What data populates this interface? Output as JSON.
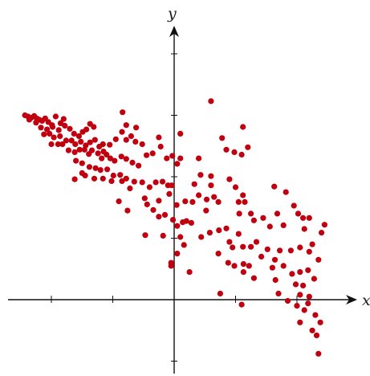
{
  "chart_data": {
    "type": "scatter",
    "title": "",
    "xlabel": "x",
    "ylabel": "y",
    "xlim": [
      -2.7,
      2.95
    ],
    "ylim": [
      -1.25,
      4.2
    ],
    "xticks": [
      -2,
      -1,
      1,
      2
    ],
    "yticks": [
      -1,
      1,
      2,
      3,
      4
    ],
    "grid": false,
    "legend": "none",
    "point_color": "#c0000f",
    "series": [
      {
        "points": [
          [
            -2.43,
            3.0
          ],
          [
            -2.38,
            2.98
          ],
          [
            -2.33,
            2.96
          ],
          [
            -2.28,
            2.99
          ],
          [
            -2.24,
            2.95
          ],
          [
            -2.2,
            2.93
          ],
          [
            -2.15,
            2.91
          ],
          [
            -2.1,
            2.95
          ],
          [
            -2.05,
            2.89
          ],
          [
            -1.99,
            2.84
          ],
          [
            -1.93,
            2.98
          ],
          [
            -1.85,
            2.87
          ],
          [
            -1.8,
            2.94
          ],
          [
            -2.36,
            2.93
          ],
          [
            -2.25,
            2.88
          ],
          [
            -2.17,
            2.8
          ],
          [
            -2.07,
            2.77
          ],
          [
            -1.98,
            2.81
          ],
          [
            -1.88,
            2.76
          ],
          [
            -1.78,
            2.83
          ],
          [
            -1.7,
            2.78
          ],
          [
            -1.63,
            2.7
          ],
          [
            -1.55,
            2.66
          ],
          [
            -1.49,
            2.73
          ],
          [
            -1.43,
            2.77
          ],
          [
            -1.37,
            2.86
          ],
          [
            -1.31,
            2.81
          ],
          [
            -2.12,
            2.69
          ],
          [
            -2.03,
            2.7
          ],
          [
            -1.96,
            2.64
          ],
          [
            -1.86,
            2.66
          ],
          [
            -1.76,
            2.59
          ],
          [
            -1.67,
            2.59
          ],
          [
            -1.61,
            2.53
          ],
          [
            -1.52,
            2.57
          ],
          [
            -1.44,
            2.51
          ],
          [
            -1.37,
            2.56
          ],
          [
            -1.29,
            2.6
          ],
          [
            -1.22,
            2.49
          ],
          [
            -1.16,
            2.53
          ],
          [
            -2.0,
            2.53
          ],
          [
            -1.89,
            2.53
          ],
          [
            -1.82,
            2.53
          ],
          [
            -1.72,
            2.43
          ],
          [
            -1.62,
            2.4
          ],
          [
            -1.54,
            2.44
          ],
          [
            -1.46,
            2.44
          ],
          [
            -1.39,
            2.37
          ],
          [
            -1.34,
            2.43
          ],
          [
            -1.24,
            2.38
          ],
          [
            -1.18,
            2.3
          ],
          [
            -1.1,
            2.36
          ],
          [
            -1.04,
            2.3
          ],
          [
            -0.97,
            2.26
          ],
          [
            -0.86,
            2.33
          ],
          [
            -0.78,
            2.29
          ],
          [
            -0.68,
            2.23
          ],
          [
            -0.58,
            2.18
          ],
          [
            -1.6,
            2.26
          ],
          [
            -1.5,
            2.22
          ],
          [
            -1.38,
            2.16
          ],
          [
            -1.28,
            2.14
          ],
          [
            -1.2,
            2.11
          ],
          [
            -1.09,
            2.12
          ],
          [
            -0.99,
            2.02
          ],
          [
            -0.88,
            2.03
          ],
          [
            -0.78,
            1.97
          ],
          [
            -0.65,
            1.92
          ],
          [
            -0.52,
            1.91
          ],
          [
            -0.4,
            1.83
          ],
          [
            -0.3,
            1.91
          ],
          [
            -0.19,
            1.92
          ],
          [
            -0.1,
            1.86
          ],
          [
            -0.04,
            1.86
          ],
          [
            -1.45,
            2.02
          ],
          [
            -1.3,
            1.97
          ],
          [
            -1.16,
            1.97
          ],
          [
            -1.02,
            1.93
          ],
          [
            -0.85,
            1.93
          ],
          [
            -0.72,
            1.81
          ],
          [
            -1.62,
            1.96
          ],
          [
            -1.5,
            2.06
          ],
          [
            -1.15,
            2.41
          ],
          [
            -1.05,
            2.52
          ],
          [
            -0.95,
            2.61
          ],
          [
            -0.85,
            2.73
          ],
          [
            -0.78,
            2.6
          ],
          [
            -0.7,
            2.66
          ],
          [
            -0.63,
            2.57
          ],
          [
            -0.52,
            2.53
          ],
          [
            -0.45,
            2.35
          ],
          [
            -0.35,
            2.38
          ],
          [
            -0.22,
            2.49
          ],
          [
            -0.12,
            2.3
          ],
          [
            -0.03,
            2.34
          ],
          [
            0.05,
            2.21
          ],
          [
            0.1,
            2.3
          ],
          [
            -0.84,
            3.05
          ],
          [
            -0.78,
            2.84
          ],
          [
            -0.62,
            2.8
          ],
          [
            -0.25,
            2.64
          ],
          [
            0.1,
            2.7
          ],
          [
            0.4,
            2.3
          ],
          [
            0.6,
            3.23
          ],
          [
            0.78,
            2.63
          ],
          [
            0.85,
            2.44
          ],
          [
            0.98,
            2.4
          ],
          [
            1.1,
            2.36
          ],
          [
            1.12,
            2.81
          ],
          [
            1.2,
            2.48
          ],
          [
            0.6,
            2.01
          ],
          [
            0.43,
            2.03
          ],
          [
            0.33,
            1.88
          ],
          [
            0.4,
            1.7
          ],
          [
            0.6,
            1.86
          ],
          [
            0.65,
            1.67
          ],
          [
            0.53,
            1.63
          ],
          [
            0.72,
            1.59
          ],
          [
            0.9,
            1.96
          ],
          [
            1.0,
            1.83
          ],
          [
            1.05,
            1.59
          ],
          [
            1.15,
            1.59
          ],
          [
            1.06,
            1.4
          ],
          [
            1.25,
            1.4
          ],
          [
            1.12,
            1.7
          ],
          [
            1.3,
            1.29
          ],
          [
            1.45,
            1.33
          ],
          [
            1.56,
            1.19
          ],
          [
            1.68,
            1.4
          ],
          [
            1.78,
            1.21
          ],
          [
            1.82,
            1.75
          ],
          [
            1.95,
            1.53
          ],
          [
            2.02,
            1.4
          ],
          [
            2.1,
            1.33
          ],
          [
            2.12,
            1.15
          ],
          [
            2.2,
            1.33
          ],
          [
            1.63,
            1.84
          ],
          [
            -0.9,
            1.6
          ],
          [
            -0.76,
            1.45
          ],
          [
            -0.44,
            1.55
          ],
          [
            -0.34,
            1.46
          ],
          [
            -0.25,
            1.35
          ],
          [
            -0.15,
            1.38
          ],
          [
            -0.02,
            1.3
          ],
          [
            0.05,
            1.2
          ],
          [
            0.14,
            1.26
          ],
          [
            0.2,
            1.28
          ],
          [
            0.28,
            1.25
          ],
          [
            0.44,
            1.02
          ],
          [
            0.1,
            1.02
          ],
          [
            0.16,
            0.89
          ],
          [
            -0.18,
            1.04
          ],
          [
            -0.47,
            1.05
          ],
          [
            -0.48,
            1.65
          ],
          [
            -0.25,
            1.61
          ],
          [
            -0.08,
            1.72
          ],
          [
            0.04,
            1.54
          ],
          [
            0.18,
            1.6
          ],
          [
            0.3,
            1.59
          ],
          [
            0.52,
            1.45
          ],
          [
            0.58,
            1.09
          ],
          [
            0.73,
            1.13
          ],
          [
            0.85,
            1.16
          ],
          [
            0.9,
            0.94
          ],
          [
            0.95,
            0.85
          ],
          [
            1.05,
            1.07
          ],
          [
            1.12,
            0.86
          ],
          [
            1.25,
            0.86
          ],
          [
            1.34,
            0.94
          ],
          [
            1.42,
            0.7
          ],
          [
            1.52,
            0.82
          ],
          [
            1.64,
            0.65
          ],
          [
            1.72,
            0.8
          ],
          [
            1.9,
            0.8
          ],
          [
            2.05,
            0.85
          ],
          [
            2.2,
            0.78
          ],
          [
            0.72,
            0.75
          ],
          [
            0.88,
            0.6
          ],
          [
            0.98,
            0.55
          ],
          [
            1.13,
            0.58
          ],
          [
            1.22,
            0.55
          ],
          [
            1.6,
            0.52
          ],
          [
            1.78,
            0.55
          ],
          [
            1.92,
            0.42
          ],
          [
            2.05,
            0.45
          ],
          [
            2.18,
            0.48
          ],
          [
            2.28,
            0.34
          ],
          [
            2.35,
            0.65
          ],
          [
            2.45,
            1.22
          ],
          [
            2.4,
            1.09
          ],
          [
            2.25,
            0.9
          ],
          [
            0.05,
            0.75
          ],
          [
            -0.05,
            0.55
          ],
          [
            -0.05,
            0.6
          ],
          [
            0.25,
            0.45
          ],
          [
            0.75,
            0.1
          ],
          [
            1.13,
            0.45
          ],
          [
            1.3,
            0.35
          ],
          [
            1.65,
            0.32
          ],
          [
            1.7,
            0.1
          ],
          [
            1.98,
            0.25
          ],
          [
            2.05,
            0.08
          ],
          [
            2.1,
            0.23
          ],
          [
            2.0,
            -0.1
          ],
          [
            2.18,
            -0.06
          ],
          [
            2.12,
            -0.17
          ],
          [
            2.05,
            -0.37
          ],
          [
            2.2,
            0.05
          ],
          [
            1.1,
            -0.08
          ],
          [
            1.85,
            -0.02
          ],
          [
            2.3,
            -0.25
          ],
          [
            2.38,
            -0.37
          ],
          [
            2.25,
            -0.5
          ],
          [
            2.32,
            -0.58
          ],
          [
            2.35,
            -0.88
          ]
        ]
      }
    ]
  }
}
